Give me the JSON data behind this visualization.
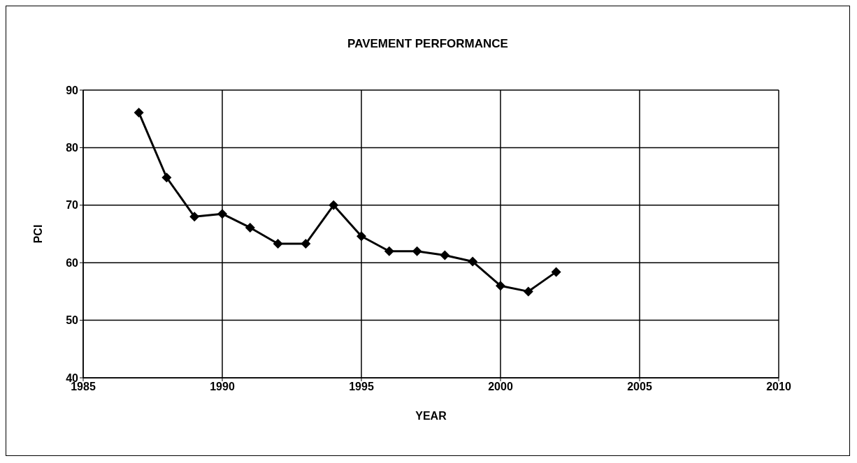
{
  "chart_data": {
    "type": "line",
    "title": "PAVEMENT PERFORMANCE",
    "xlabel": "YEAR",
    "ylabel": "PCI",
    "x": [
      1987,
      1988,
      1989,
      1990,
      1991,
      1992,
      1993,
      1994,
      1995,
      1996,
      1997,
      1998,
      1999,
      2000,
      2001,
      2002
    ],
    "series": [
      {
        "color": "#000000",
        "values": [
          86.1,
          74.8,
          68,
          68.5,
          66.1,
          63.3,
          63.3,
          70,
          64.6,
          62,
          62,
          61.3,
          60.2,
          56,
          55,
          58.4
        ]
      }
    ],
    "xlim": [
      1985,
      2010
    ],
    "xticks": [
      1985,
      1990,
      1995,
      2000,
      2005,
      2010
    ],
    "ylim": [
      40,
      90
    ],
    "yticks": [
      40,
      50,
      60,
      70,
      80,
      90
    ],
    "grid": true,
    "marker": "diamond",
    "line_style": "solid"
  }
}
